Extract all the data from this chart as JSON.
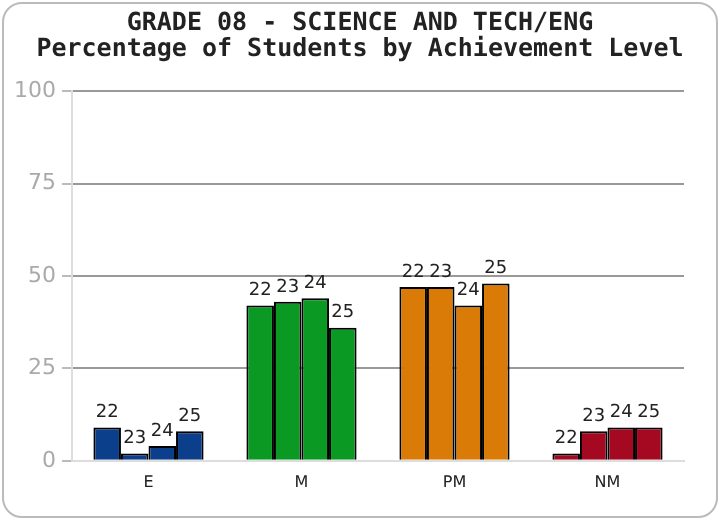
{
  "chart_data": {
    "type": "bar",
    "title": "GRADE 08 - SCIENCE AND TECH/ENG",
    "subtitle": "Percentage of Students by Achievement Level",
    "categories": [
      "E",
      "M",
      "PM",
      "NM"
    ],
    "series": [
      {
        "name": "22",
        "colors": [
          "#0b3f8b",
          "#0a9a23",
          "#d97b06",
          "#a50821"
        ],
        "values": [
          9,
          42,
          47,
          2
        ]
      },
      {
        "name": "23",
        "colors": [
          "#0b3f8b",
          "#0a9a23",
          "#d97b06",
          "#a50821"
        ],
        "values": [
          2,
          43,
          47,
          8
        ]
      },
      {
        "name": "24",
        "colors": [
          "#0b3f8b",
          "#0a9a23",
          "#d97b06",
          "#a50821"
        ],
        "values": [
          4,
          44,
          42,
          9
        ]
      },
      {
        "name": "25",
        "colors": [
          "#0b3f8b",
          "#0a9a23",
          "#d97b06",
          "#a50821"
        ],
        "values": [
          8,
          36,
          48,
          9
        ]
      }
    ],
    "ylim": [
      0,
      100
    ],
    "yticks": [
      0,
      25,
      50,
      75,
      100
    ],
    "grid": "y",
    "legend": false
  }
}
